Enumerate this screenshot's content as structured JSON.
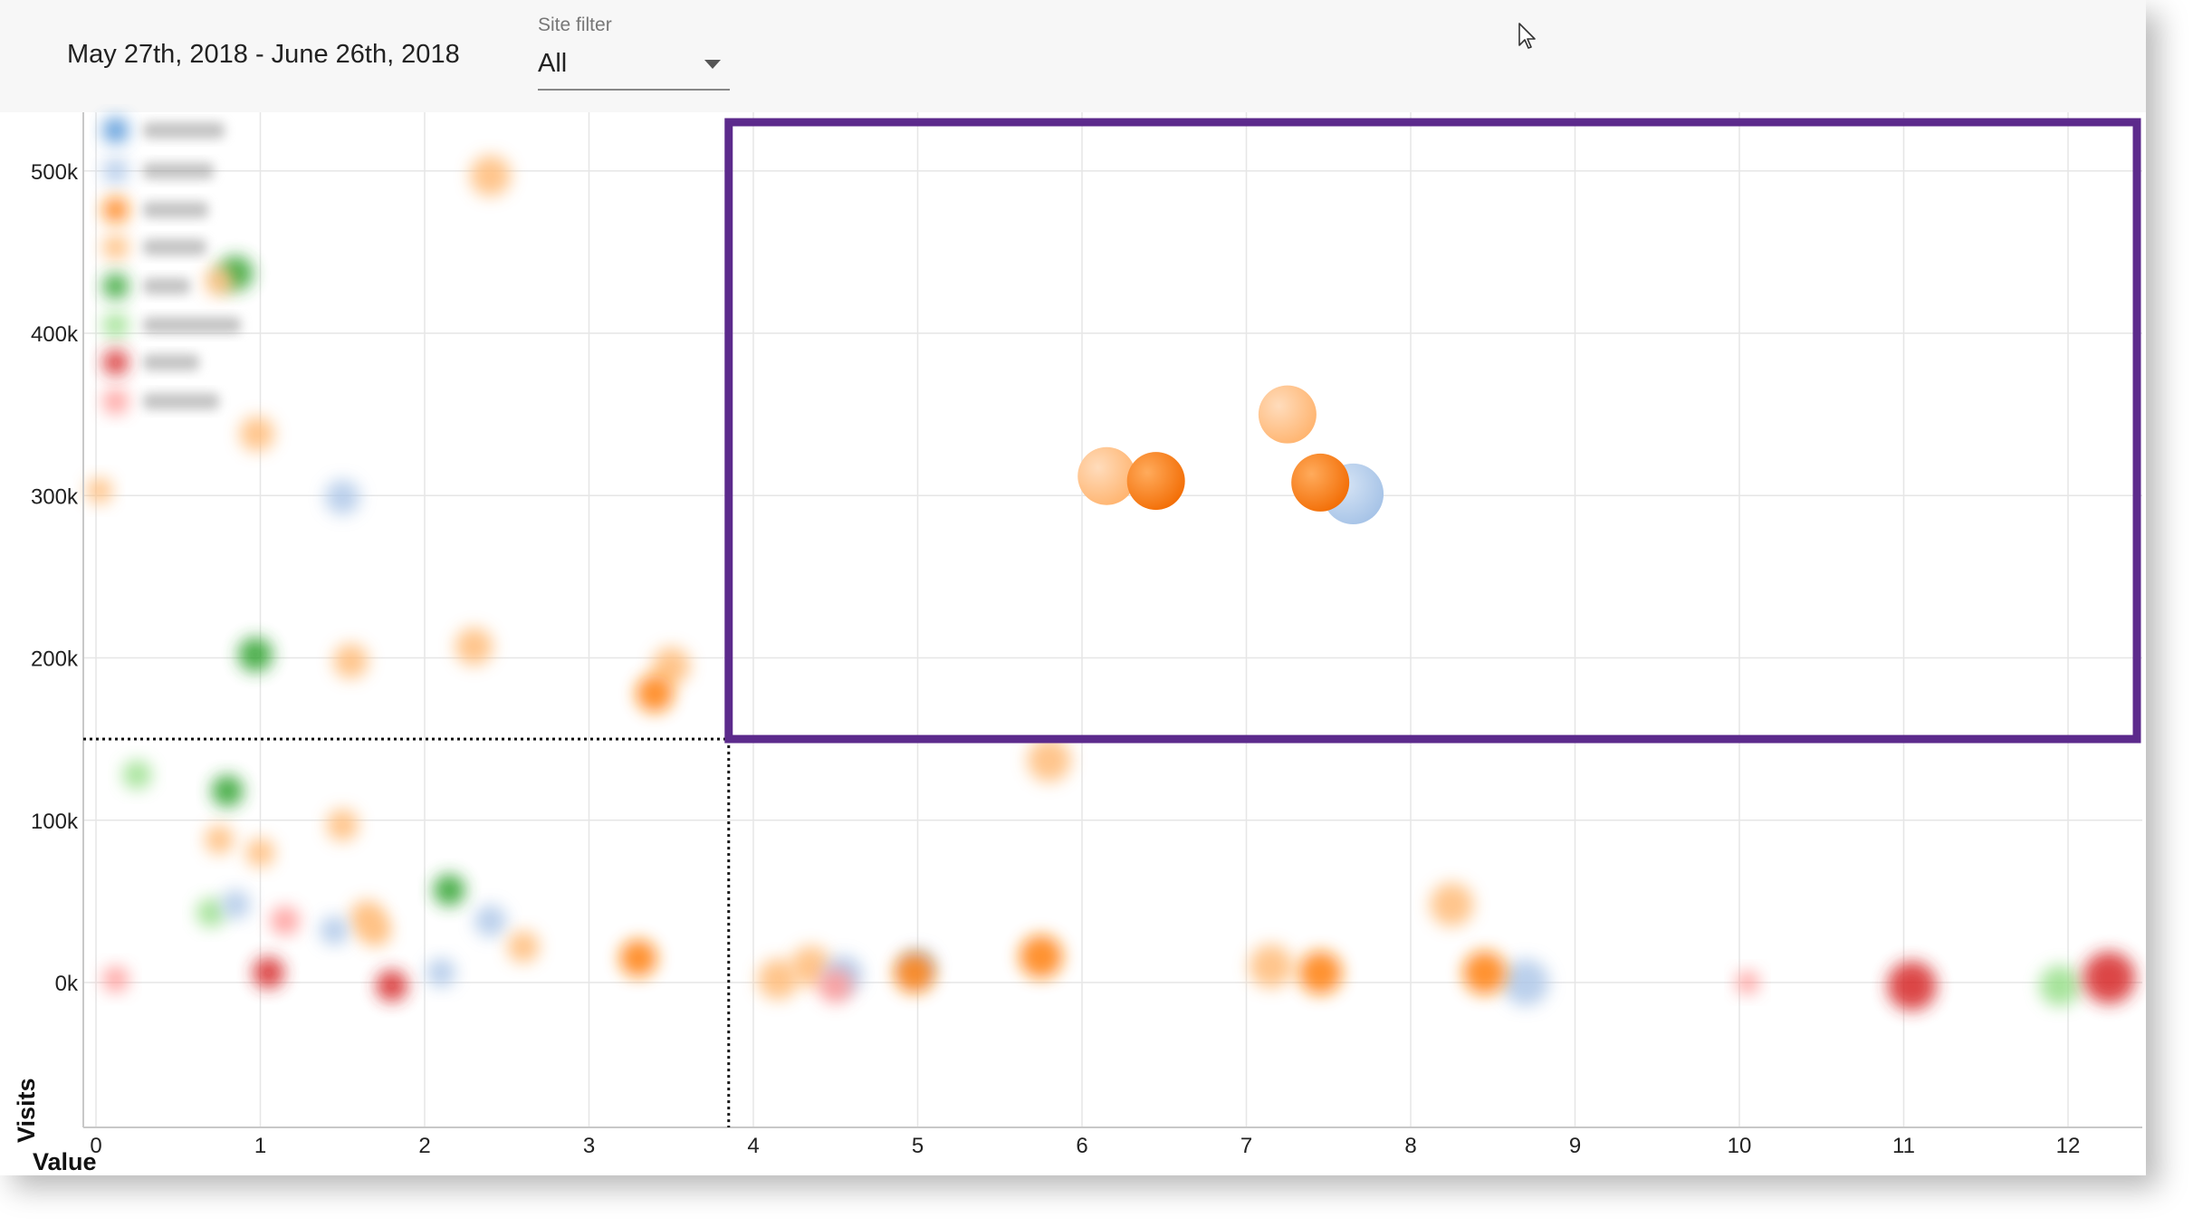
{
  "header": {
    "date_range": "May 27th, 2018 - June 26th, 2018",
    "site_filter_label": "Site filter",
    "site_filter_value": "All"
  },
  "colors": {
    "series_blue_dark": "#4a8fd6",
    "series_blue_light": "#aec7e8",
    "series_orange_dark": "#ff7f0e",
    "series_orange_light": "#ffbb78",
    "series_green_dark": "#2ca02c",
    "series_green_light": "#98df8a",
    "series_red_dark": "#d62728",
    "series_red_light": "#ff9896",
    "highlight_box": "#5c2a8c",
    "grid": "#e6e6e6"
  },
  "chart_data": {
    "type": "scatter",
    "xlabel": "Value",
    "ylabel": "Visits",
    "xlim": [
      0,
      12.5
    ],
    "ylim": [
      -90000,
      530000
    ],
    "x_ticks": [
      0,
      1,
      2,
      3,
      4,
      5,
      6,
      7,
      8,
      9,
      10,
      11,
      12
    ],
    "y_ticks": [
      {
        "value": 0,
        "label": "0k"
      },
      {
        "value": 100000,
        "label": "100k"
      },
      {
        "value": 200000,
        "label": "200k"
      },
      {
        "value": 300000,
        "label": "300k"
      },
      {
        "value": 400000,
        "label": "400k"
      },
      {
        "value": 500000,
        "label": "500k"
      }
    ],
    "grid": true,
    "legend": "top-left (blurred)",
    "threshold_x": 3.85,
    "threshold_y": 150000,
    "highlight_region": {
      "x": [
        3.85,
        12.5
      ],
      "y": [
        150000,
        530000
      ]
    },
    "focus_points": [
      {
        "x": 6.15,
        "y": 312000,
        "color": "series_orange_light",
        "size": 1
      },
      {
        "x": 6.45,
        "y": 309000,
        "color": "series_orange_dark",
        "size": 1
      },
      {
        "x": 7.25,
        "y": 350000,
        "color": "series_orange_light",
        "size": 1
      },
      {
        "x": 7.65,
        "y": 301000,
        "color": "series_blue_light",
        "size": 1.05
      },
      {
        "x": 7.45,
        "y": 308000,
        "color": "series_orange_dark",
        "size": 1
      }
    ],
    "blurred_points": [
      {
        "x": 0.12,
        "y": 525000,
        "color": "series_blue_dark",
        "size": 0.45
      },
      {
        "x": 0.12,
        "y": 500000,
        "color": "series_blue_light",
        "size": 0.45
      },
      {
        "x": 0.12,
        "y": 476000,
        "color": "series_orange_dark",
        "size": 0.45
      },
      {
        "x": 0.12,
        "y": 453000,
        "color": "series_orange_light",
        "size": 0.45
      },
      {
        "x": 0.12,
        "y": 429000,
        "color": "series_green_dark",
        "size": 0.45
      },
      {
        "x": 0.12,
        "y": 405000,
        "color": "series_green_light",
        "size": 0.45
      },
      {
        "x": 0.12,
        "y": 382000,
        "color": "series_red_dark",
        "size": 0.45
      },
      {
        "x": 0.12,
        "y": 358000,
        "color": "series_red_light",
        "size": 0.45
      },
      {
        "x": 2.4,
        "y": 497000,
        "color": "series_orange_light",
        "size": 0.7
      },
      {
        "x": 0.85,
        "y": 437000,
        "color": "series_green_dark",
        "size": 0.6
      },
      {
        "x": 0.75,
        "y": 432000,
        "color": "series_orange_light",
        "size": 0.5
      },
      {
        "x": 0.98,
        "y": 338000,
        "color": "series_orange_light",
        "size": 0.6
      },
      {
        "x": 0.02,
        "y": 303000,
        "color": "series_orange_light",
        "size": 0.45
      },
      {
        "x": 1.5,
        "y": 299000,
        "color": "series_blue_light",
        "size": 0.6
      },
      {
        "x": 0.97,
        "y": 202000,
        "color": "series_green_dark",
        "size": 0.6
      },
      {
        "x": 1.55,
        "y": 198000,
        "color": "series_orange_light",
        "size": 0.6
      },
      {
        "x": 2.3,
        "y": 207000,
        "color": "series_orange_light",
        "size": 0.65
      },
      {
        "x": 3.5,
        "y": 195000,
        "color": "series_orange_light",
        "size": 0.65
      },
      {
        "x": 3.4,
        "y": 178000,
        "color": "series_orange_dark",
        "size": 0.65
      },
      {
        "x": 5.8,
        "y": 137000,
        "color": "series_orange_light",
        "size": 0.75
      },
      {
        "x": 0.25,
        "y": 128000,
        "color": "series_green_light",
        "size": 0.5
      },
      {
        "x": 0.8,
        "y": 118000,
        "color": "series_green_dark",
        "size": 0.55
      },
      {
        "x": 1.5,
        "y": 97000,
        "color": "series_orange_light",
        "size": 0.55
      },
      {
        "x": 0.75,
        "y": 88000,
        "color": "series_orange_light",
        "size": 0.5
      },
      {
        "x": 1.0,
        "y": 80000,
        "color": "series_orange_light",
        "size": 0.5
      },
      {
        "x": 0.7,
        "y": 43000,
        "color": "series_green_light",
        "size": 0.5
      },
      {
        "x": 0.85,
        "y": 48000,
        "color": "series_blue_light",
        "size": 0.5
      },
      {
        "x": 1.15,
        "y": 38000,
        "color": "series_red_light",
        "size": 0.5
      },
      {
        "x": 1.65,
        "y": 40000,
        "color": "series_orange_light",
        "size": 0.6
      },
      {
        "x": 1.45,
        "y": 32000,
        "color": "series_blue_light",
        "size": 0.5
      },
      {
        "x": 1.7,
        "y": 32000,
        "color": "series_orange_light",
        "size": 0.55
      },
      {
        "x": 2.15,
        "y": 57000,
        "color": "series_green_dark",
        "size": 0.55
      },
      {
        "x": 2.4,
        "y": 38000,
        "color": "series_blue_light",
        "size": 0.55
      },
      {
        "x": 2.6,
        "y": 22000,
        "color": "series_orange_light",
        "size": 0.55
      },
      {
        "x": 3.3,
        "y": 15000,
        "color": "series_orange_dark",
        "size": 0.65
      },
      {
        "x": 1.05,
        "y": 6000,
        "color": "series_red_dark",
        "size": 0.55
      },
      {
        "x": 1.8,
        "y": -2000,
        "color": "series_red_dark",
        "size": 0.55
      },
      {
        "x": 2.1,
        "y": 6000,
        "color": "series_blue_light",
        "size": 0.5
      },
      {
        "x": 0.12,
        "y": 2000,
        "color": "series_red_light",
        "size": 0.45
      },
      {
        "x": 4.15,
        "y": 2000,
        "color": "series_orange_light",
        "size": 0.7
      },
      {
        "x": 4.35,
        "y": 10000,
        "color": "series_orange_light",
        "size": 0.7
      },
      {
        "x": 4.55,
        "y": 5000,
        "color": "series_blue_light",
        "size": 0.65
      },
      {
        "x": 4.5,
        "y": -2000,
        "color": "series_red_light",
        "size": 0.6
      },
      {
        "x": 5.0,
        "y": 10000,
        "color": "series_blue_light",
        "size": 0.6
      },
      {
        "x": 4.98,
        "y": 6000,
        "color": "series_orange_dark",
        "size": 0.7
      },
      {
        "x": 5.75,
        "y": 16000,
        "color": "series_orange_dark",
        "size": 0.75
      },
      {
        "x": 7.15,
        "y": 10000,
        "color": "series_orange_light",
        "size": 0.75
      },
      {
        "x": 7.45,
        "y": 6000,
        "color": "series_orange_dark",
        "size": 0.75
      },
      {
        "x": 8.25,
        "y": 48000,
        "color": "series_orange_light",
        "size": 0.75
      },
      {
        "x": 8.7,
        "y": 0,
        "color": "series_blue_light",
        "size": 0.8
      },
      {
        "x": 8.45,
        "y": 6000,
        "color": "series_orange_dark",
        "size": 0.75
      },
      {
        "x": 10.05,
        "y": 0,
        "color": "series_red_light",
        "size": 0.4
      },
      {
        "x": 11.05,
        "y": -2000,
        "color": "series_red_dark",
        "size": 0.85
      },
      {
        "x": 11.95,
        "y": -2000,
        "color": "series_green_light",
        "size": 0.7
      },
      {
        "x": 12.25,
        "y": 3000,
        "color": "series_red_dark",
        "size": 0.9
      }
    ]
  }
}
